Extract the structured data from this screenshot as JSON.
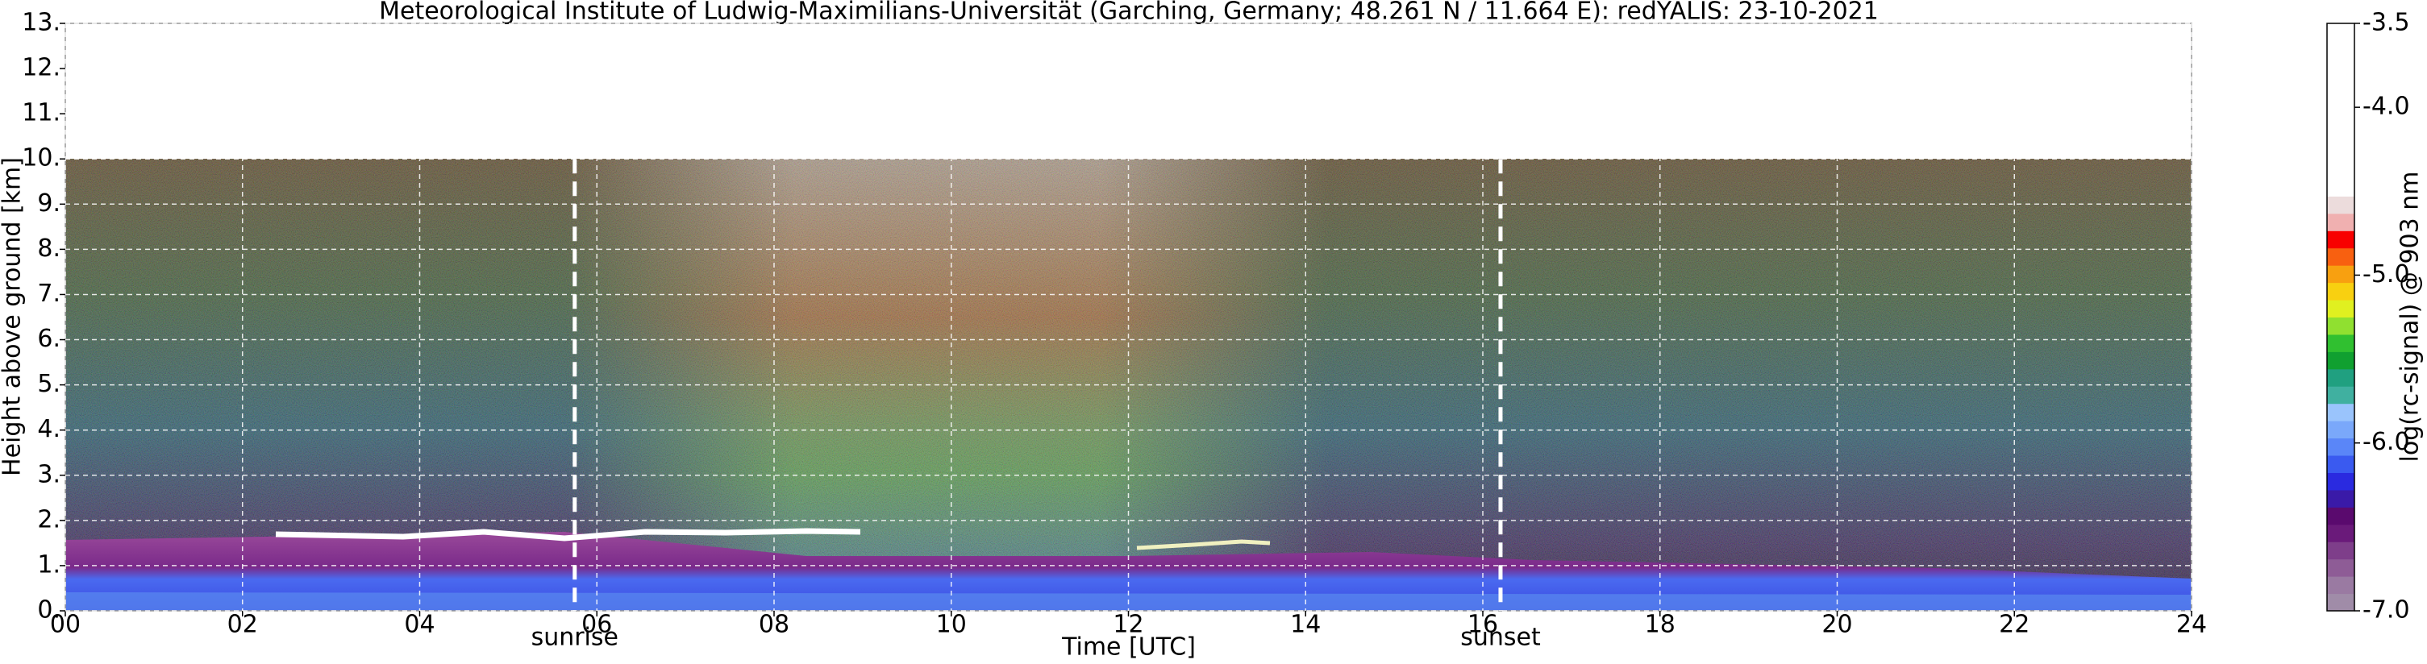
{
  "chart_data": {
    "type": "lidar-heatmap",
    "title": "Meteorological Institute of Ludwig-Maximilians-Universität (Garching, Germany; 48.261 N / 11.664 E):    redYALIS: 23-10-2021",
    "x_label": "Time [UTC]",
    "y_label": "Height above ground [km]",
    "xlim": [
      0,
      24
    ],
    "xticks": [
      {
        "value": 0,
        "label": "00"
      },
      {
        "value": 2,
        "label": "02"
      },
      {
        "value": 4,
        "label": "04"
      },
      {
        "value": 6,
        "label": "06"
      },
      {
        "value": 8,
        "label": "08"
      },
      {
        "value": 10,
        "label": "10"
      },
      {
        "value": 12,
        "label": "12"
      },
      {
        "value": 14,
        "label": "14"
      },
      {
        "value": 16,
        "label": "16"
      },
      {
        "value": 18,
        "label": "18"
      },
      {
        "value": 20,
        "label": "20"
      },
      {
        "value": 22,
        "label": "22"
      },
      {
        "value": 24,
        "label": "24"
      }
    ],
    "ylim": [
      0,
      13
    ],
    "yticks": [
      {
        "value": 0,
        "label": "0."
      },
      {
        "value": 1,
        "label": "1."
      },
      {
        "value": 2,
        "label": "2."
      },
      {
        "value": 3,
        "label": "3."
      },
      {
        "value": 4,
        "label": "4."
      },
      {
        "value": 5,
        "label": "5."
      },
      {
        "value": 6,
        "label": "6."
      },
      {
        "value": 7,
        "label": "7."
      },
      {
        "value": 8,
        "label": "8."
      },
      {
        "value": 9,
        "label": "9."
      },
      {
        "value": 10,
        "label": "10."
      },
      {
        "value": 11,
        "label": "11."
      },
      {
        "value": 12,
        "label": "12."
      },
      {
        "value": 13,
        "label": "13."
      }
    ],
    "grid": true,
    "annotations": [
      {
        "x": 5.75,
        "label": "sunrise"
      },
      {
        "x": 16.2,
        "label": "sunset"
      }
    ],
    "colorbar_label": "log(rc-signal) @ 903 nm",
    "clim": [
      -7,
      -3.5
    ],
    "cticks": [
      -3.5,
      {
        "value": -4,
        "label": "-4.0"
      },
      {
        "value": -5,
        "label": "-5.0"
      },
      {
        "value": -6,
        "label": "-6.0"
      },
      {
        "value": -7,
        "label": "-7.0"
      }
    ],
    "colorscale": [
      "#a08ca8",
      "#9a7aa2",
      "#8e5c96",
      "#7e3e8a",
      "#6a1a7a",
      "#5a0a6e",
      "#3a1aa8",
      "#2a2ae0",
      "#3a5af0",
      "#5a86f8",
      "#7aa8fa",
      "#9ac4fc",
      "#40b0a0",
      "#20a080",
      "#10a030",
      "#30c030",
      "#90e030",
      "#e0f020",
      "#f8d010",
      "#f8a010",
      "#f86010",
      "#f80000",
      "#f0b0b0",
      "#ecdcdc",
      "#ffffff",
      "#ffffff",
      "#ffffff",
      "#ffffff",
      "#ffffff",
      "#ffffff",
      "#ffffff",
      "#ffffff",
      "#ffffff",
      "#ffffff"
    ]
  }
}
